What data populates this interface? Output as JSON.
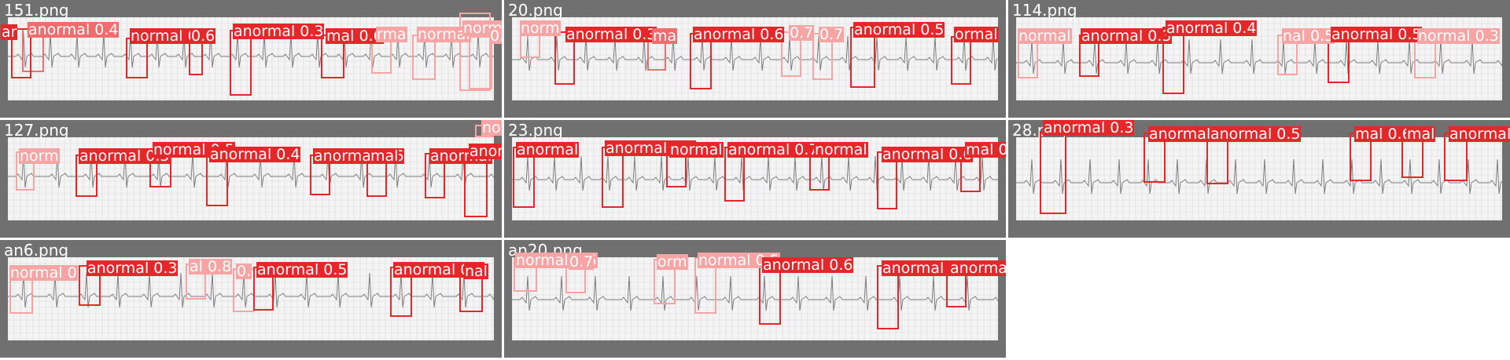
{
  "colors": {
    "panel_background": "#707070",
    "paper": "#f4f4f4",
    "grid": "#d9d9d9",
    "trace": "#7d7d7d",
    "detection_strong": "#e6272a",
    "detection_mid": "#f16d6d",
    "detection_weak": "#f7a4a4"
  },
  "tiles": [
    {
      "title": "151.png",
      "detections": [
        {
          "label": "anormal 0.4",
          "level": "mid"
        },
        {
          "label": "ar",
          "level": "strong"
        },
        {
          "label": "normal 0.6",
          "level": "strong"
        },
        {
          "label": "0.6",
          "level": "strong"
        },
        {
          "label": "anormal 0.3",
          "level": "strong"
        },
        {
          "label": "mal 0.6",
          "level": "strong"
        },
        {
          "label": "rma",
          "level": "weak"
        },
        {
          "label": "normal",
          "level": "weak"
        },
        {
          "label": "normal",
          "level": "weak"
        },
        {
          "label": "0.8",
          "level": "weak"
        }
      ]
    },
    {
      "title": "20.png",
      "detections": [
        {
          "label": "norm",
          "level": "weak"
        },
        {
          "label": "anormal 0.3",
          "level": "strong"
        },
        {
          "label": "ma",
          "level": "mid"
        },
        {
          "label": "anormal 0.6",
          "level": "strong"
        },
        {
          "label": "0.7",
          "level": "weak"
        },
        {
          "label": "0.7",
          "level": "weak"
        },
        {
          "label": "anormal 0.5",
          "level": "strong"
        },
        {
          "label": "ormal",
          "level": "strong"
        }
      ]
    },
    {
      "title": "114.png",
      "detections": [
        {
          "label": "normal",
          "level": "weak"
        },
        {
          "label": "anormal 0.3",
          "level": "strong"
        },
        {
          "label": "anormal 0.4",
          "level": "strong"
        },
        {
          "label": "nal 0.5",
          "level": "weak"
        },
        {
          "label": "anormal 0.5",
          "level": "strong"
        },
        {
          "label": "normal 0.3",
          "level": "weak"
        }
      ]
    },
    {
      "title": "127.png",
      "detections": [
        {
          "label": "norm",
          "level": "weak"
        },
        {
          "label": "anormal 0.5",
          "level": "strong"
        },
        {
          "label": "normal 0.5",
          "level": "strong"
        },
        {
          "label": "anormal 0.4",
          "level": "strong"
        },
        {
          "label": "anormal 0.6",
          "level": "strong"
        },
        {
          "label": "mal",
          "level": "strong"
        },
        {
          "label": "anormal",
          "level": "strong"
        },
        {
          "label": "anorm",
          "level": "strong"
        },
        {
          "label": "normal 0.5",
          "level": "weak"
        }
      ]
    },
    {
      "title": "23.png",
      "detections": [
        {
          "label": "anormal",
          "level": "strong"
        },
        {
          "label": "anormal 0.4",
          "level": "strong"
        },
        {
          "label": "normal",
          "level": "strong"
        },
        {
          "label": "anormal 0.7",
          "level": "strong"
        },
        {
          "label": "normal",
          "level": "strong"
        },
        {
          "label": "anormal 0.6",
          "level": "strong"
        },
        {
          "label": "mal 0.7",
          "level": "strong"
        }
      ]
    },
    {
      "title": "28.png",
      "detections": [
        {
          "label": "anormal 0.3",
          "level": "strong"
        },
        {
          "label": "anormal",
          "level": "strong"
        },
        {
          "label": "anormal 0.5",
          "level": "strong"
        },
        {
          "label": "mal 0.6",
          "level": "strong"
        },
        {
          "label": "mal",
          "level": "strong"
        },
        {
          "label": "anormal 0.7",
          "level": "strong"
        }
      ]
    },
    {
      "title": "an6.png",
      "detections": [
        {
          "label": "normal 0",
          "level": "weak"
        },
        {
          "label": "anormal 0.3",
          "level": "strong"
        },
        {
          "label": "al 0.8",
          "level": "weak"
        },
        {
          "label": "0.",
          "level": "weak"
        },
        {
          "label": "anormal 0.5",
          "level": "strong"
        },
        {
          "label": "anormal 0.6",
          "level": "strong"
        },
        {
          "label": "nal",
          "level": "strong"
        }
      ]
    },
    {
      "title": "an20.png",
      "detections": [
        {
          "label": "normal 0.5",
          "level": "weak"
        },
        {
          "label": "0.7",
          "level": "weak"
        },
        {
          "label": "orm",
          "level": "weak"
        },
        {
          "label": "normal 0.5",
          "level": "weak"
        },
        {
          "label": "anormal 0.6",
          "level": "strong"
        },
        {
          "label": "anormal 0.6",
          "level": "strong"
        },
        {
          "label": "anormal 0.5",
          "level": "strong"
        }
      ]
    }
  ]
}
